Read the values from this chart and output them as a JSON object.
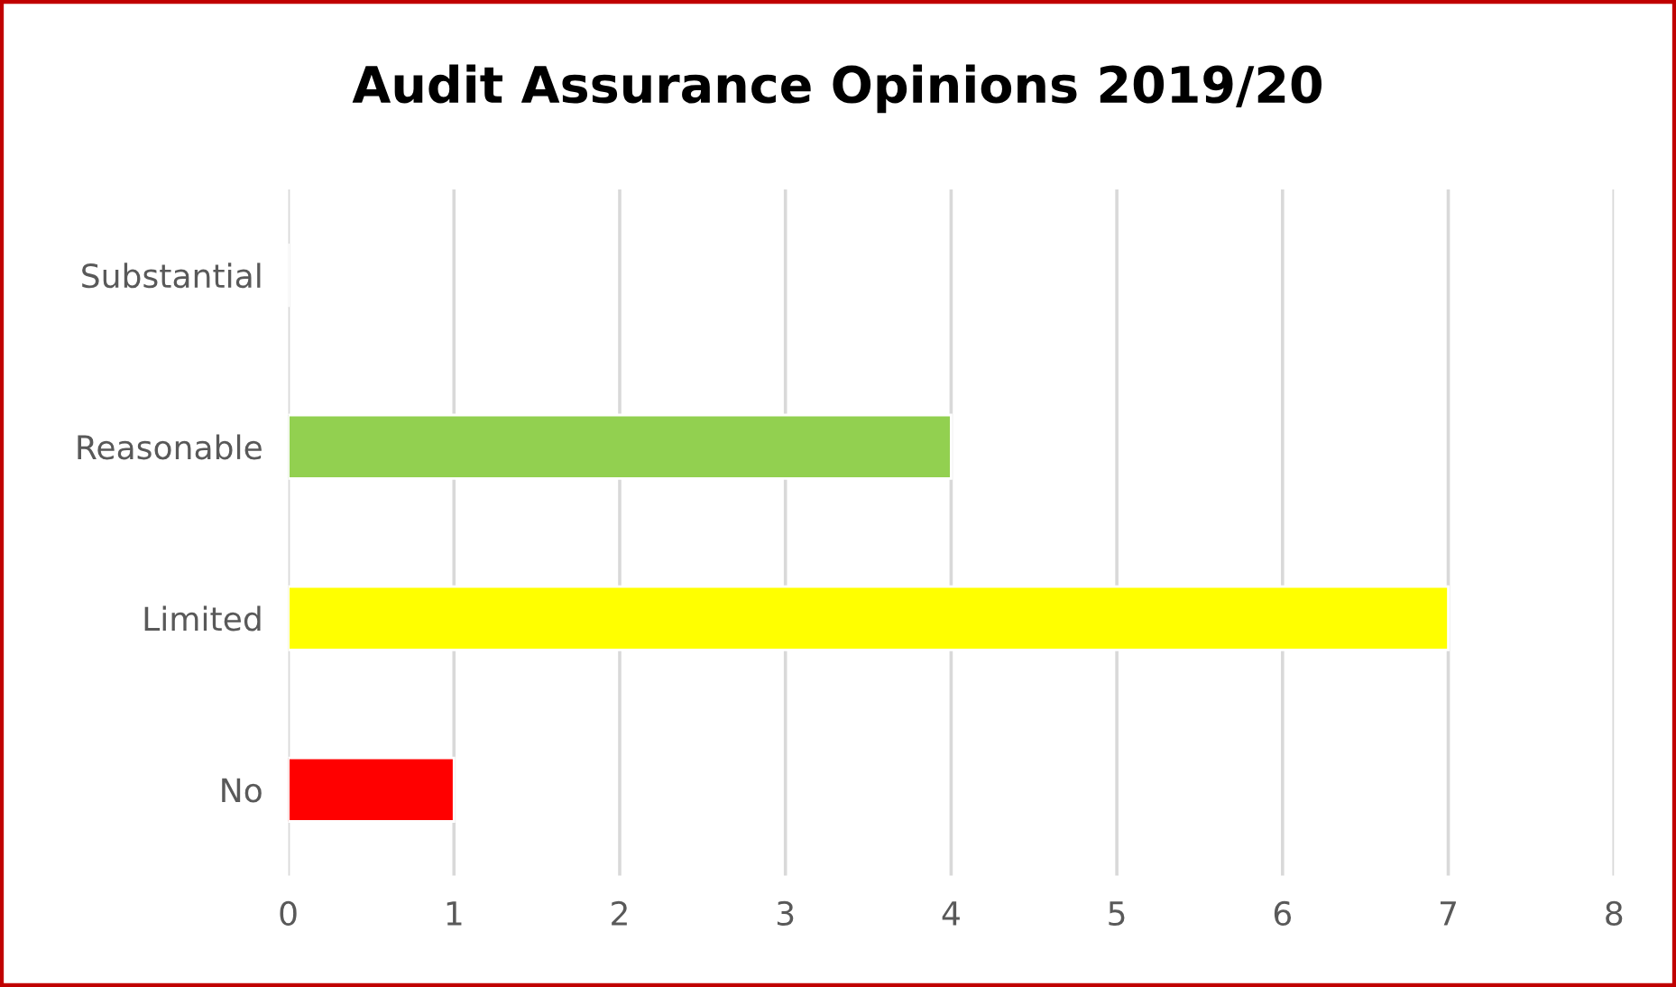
{
  "chart_data": {
    "type": "bar",
    "orientation": "horizontal",
    "title": "Audit Assurance Opinions 2019/20",
    "categories": [
      "Substantial",
      "Reasonable",
      "Limited",
      "No"
    ],
    "values": [
      0,
      4,
      7,
      1
    ],
    "colors": [
      null,
      "#92d050",
      "#ffff00",
      "#ff0000"
    ],
    "xlim": [
      0,
      8
    ],
    "xticks": [
      0,
      1,
      2,
      3,
      4,
      5,
      6,
      7,
      8
    ],
    "grid": "x",
    "legend": false
  }
}
